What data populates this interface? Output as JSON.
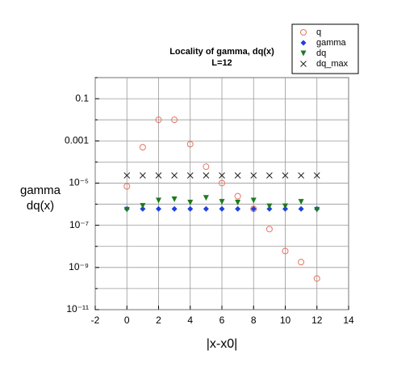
{
  "chart_data": {
    "type": "scatter",
    "title": "Locality of gamma, dq(x)",
    "subtitle": "L=12",
    "x_label": "|x-x0|",
    "y_label": [
      "gamma",
      "dq(x)"
    ],
    "xlim": [
      -2,
      14
    ],
    "xticks": [
      -2,
      0,
      2,
      4,
      6,
      8,
      10,
      12,
      14
    ],
    "ylim": [
      1e-11,
      1
    ],
    "log_y": true,
    "grid": true,
    "yticks": [
      0.1,
      0.001,
      {
        "value": 1e-05,
        "label": "10⁻⁵"
      },
      {
        "value": 1e-07,
        "label": "10⁻⁷"
      },
      {
        "value": 1e-09,
        "label": "10⁻⁹"
      },
      {
        "value": 1e-11,
        "label": "10⁻¹¹"
      }
    ],
    "minor_yticks": [
      1,
      0.01,
      0.0001,
      1e-06,
      1e-08,
      1e-10
    ],
    "legend": "top-right",
    "x": [
      0,
      1,
      2,
      3,
      4,
      5,
      6,
      7,
      8,
      9,
      10,
      11,
      12
    ],
    "series": [
      {
        "name": "q",
        "color": "#e8735f",
        "marker": "open-circle",
        "values": [
          7e-06,
          0.0005,
          0.01,
          0.01,
          0.0007,
          6e-05,
          1e-05,
          2.4e-06,
          6e-07,
          6.6e-08,
          6e-09,
          1.8e-09,
          3e-10
        ]
      },
      {
        "name": "gamma",
        "color": "#1f3fe0",
        "marker": "diamond",
        "values": [
          6e-07,
          6e-07,
          6e-07,
          6e-07,
          6e-07,
          6e-07,
          6e-07,
          6e-07,
          6e-07,
          6e-07,
          6e-07,
          6e-07,
          6e-07
        ]
      },
      {
        "name": "dq",
        "color": "#1e7a1e",
        "marker": "triangle-down",
        "values": [
          5.5e-07,
          8.3e-07,
          1.5e-06,
          1.7e-06,
          1.2e-06,
          2e-06,
          1.3e-06,
          1.2e-06,
          1.5e-06,
          8e-07,
          8e-07,
          1.3e-06,
          5.5e-07
        ]
      },
      {
        "name": "dq_max",
        "color": "#222222",
        "marker": "cross",
        "values": [
          2.3e-05,
          2.3e-05,
          2.3e-05,
          2.3e-05,
          2.3e-05,
          2.3e-05,
          2.3e-05,
          2.3e-05,
          2.3e-05,
          2.3e-05,
          2.3e-05,
          2.3e-05,
          2.3e-05
        ]
      }
    ]
  }
}
